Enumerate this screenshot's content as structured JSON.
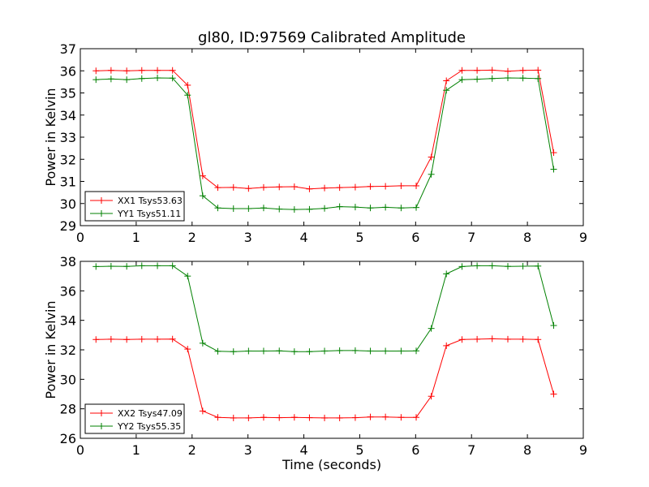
{
  "chart_data": [
    {
      "type": "line",
      "title": "gl80, ID:97569 Calibrated Amplitude",
      "xlabel": "",
      "ylabel": "Power in Kelvin",
      "xlim": [
        0,
        9
      ],
      "ylim": [
        29,
        37
      ],
      "xticks": [
        "0",
        "1",
        "2",
        "3",
        "4",
        "5",
        "6",
        "7",
        "8",
        "9"
      ],
      "yticks": [
        "29",
        "30",
        "31",
        "32",
        "33",
        "34",
        "35",
        "36",
        "37"
      ],
      "legend_position": "lower-left",
      "x": [
        0.28,
        0.55,
        0.83,
        1.1,
        1.38,
        1.65,
        1.92,
        2.19,
        2.46,
        2.74,
        3.01,
        3.28,
        3.56,
        3.83,
        4.1,
        4.37,
        4.64,
        4.92,
        5.19,
        5.46,
        5.74,
        6.01,
        6.28,
        6.55,
        6.83,
        7.1,
        7.37,
        7.65,
        7.92,
        8.19,
        8.47
      ],
      "series": [
        {
          "name": "XX1 Tsys53.63",
          "color": "#ff0000",
          "values": [
            36.0,
            36.02,
            36.0,
            36.02,
            36.02,
            36.02,
            35.35,
            31.25,
            30.72,
            30.73,
            30.68,
            30.73,
            30.75,
            30.76,
            30.66,
            30.7,
            30.72,
            30.74,
            30.77,
            30.78,
            30.8,
            30.8,
            32.1,
            35.55,
            36.02,
            36.02,
            36.03,
            35.98,
            36.02,
            36.03,
            32.3
          ]
        },
        {
          "name": "YY1 Tsys51.11",
          "color": "#008000",
          "values": [
            35.6,
            35.63,
            35.6,
            35.65,
            35.68,
            35.67,
            34.9,
            30.35,
            29.8,
            29.77,
            29.77,
            29.8,
            29.75,
            29.73,
            29.74,
            29.78,
            29.86,
            29.84,
            29.8,
            29.83,
            29.8,
            29.82,
            31.32,
            35.12,
            35.6,
            35.62,
            35.65,
            35.68,
            35.67,
            35.65,
            31.55
          ]
        }
      ]
    },
    {
      "type": "line",
      "title": "",
      "xlabel": "Time (seconds)",
      "ylabel": "Power in Kelvin",
      "xlim": [
        0,
        9
      ],
      "ylim": [
        26,
        38
      ],
      "xticks": [
        "0",
        "1",
        "2",
        "3",
        "4",
        "5",
        "6",
        "7",
        "8",
        "9"
      ],
      "yticks": [
        "26",
        "28",
        "30",
        "32",
        "34",
        "36",
        "38"
      ],
      "legend_position": "lower-left",
      "x": [
        0.28,
        0.55,
        0.83,
        1.1,
        1.38,
        1.65,
        1.92,
        2.19,
        2.46,
        2.74,
        3.01,
        3.28,
        3.56,
        3.83,
        4.1,
        4.37,
        4.64,
        4.92,
        5.19,
        5.46,
        5.74,
        6.01,
        6.28,
        6.55,
        6.83,
        7.1,
        7.37,
        7.65,
        7.92,
        8.19,
        8.47
      ],
      "series": [
        {
          "name": "XX2 Tsys47.09",
          "color": "#ff0000",
          "values": [
            32.7,
            32.72,
            32.7,
            32.72,
            32.72,
            32.73,
            32.05,
            27.85,
            27.42,
            27.38,
            27.38,
            27.42,
            27.4,
            27.42,
            27.4,
            27.38,
            27.38,
            27.4,
            27.45,
            27.45,
            27.42,
            27.42,
            28.85,
            32.28,
            32.7,
            32.72,
            32.75,
            32.72,
            32.72,
            32.7,
            29.0
          ]
        },
        {
          "name": "YY2 Tsys55.35",
          "color": "#008000",
          "values": [
            37.65,
            37.67,
            37.66,
            37.7,
            37.7,
            37.7,
            37.0,
            32.45,
            31.9,
            31.88,
            31.92,
            31.92,
            31.93,
            31.88,
            31.88,
            31.92,
            31.95,
            31.95,
            31.92,
            31.92,
            31.92,
            31.93,
            33.45,
            37.15,
            37.65,
            37.7,
            37.7,
            37.66,
            37.67,
            37.68,
            33.65
          ]
        }
      ]
    }
  ]
}
